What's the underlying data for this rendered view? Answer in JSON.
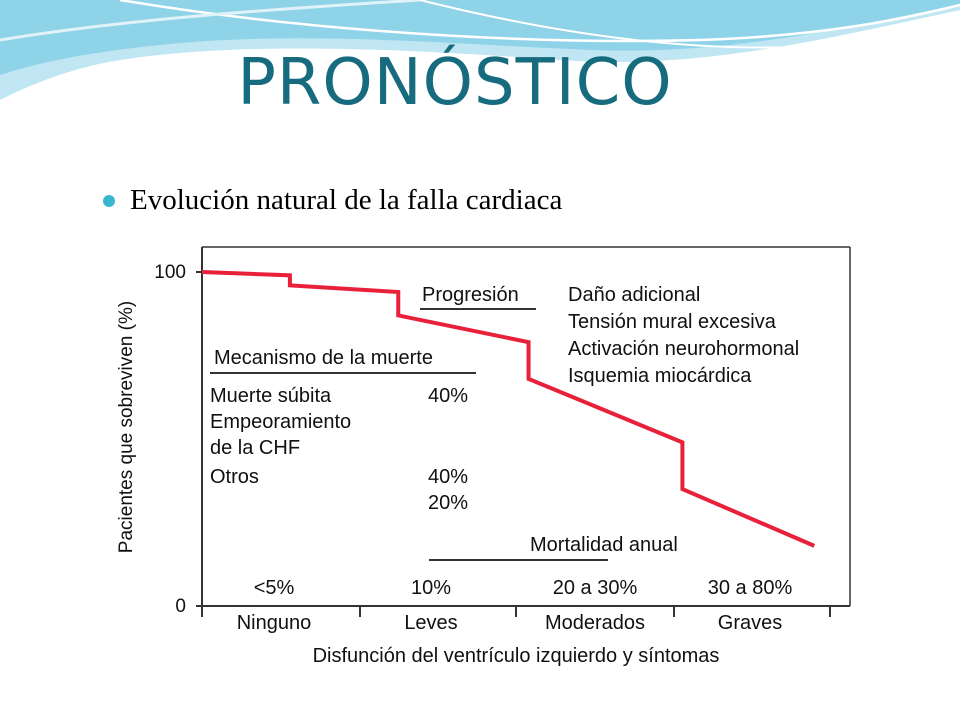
{
  "slide": {
    "title": "PRONÓSTICO",
    "bullet": "Evolución natural de la falla cardiaca"
  },
  "colors": {
    "title": "#176b7f",
    "bullet_dot": "#3ab7cf",
    "curve": "#e8203a",
    "wave_light": "#bfe6f2",
    "wave_mid": "#7fcfe6"
  },
  "chart_data": {
    "type": "line",
    "ylabel": "Pacientes que sobreviven (%)",
    "xlabel": "Disfunción del ventrículo izquierdo y síntomas",
    "ylim": [
      0,
      100
    ],
    "yticks": [
      "100",
      "0"
    ],
    "categories": [
      "Ninguno",
      "Leves",
      "Moderados",
      "Graves"
    ],
    "annual_mortality": {
      "title": "Mortalidad anual",
      "values": [
        "<5%",
        "10%",
        "20 a 30%",
        "30 a 80%"
      ]
    },
    "series": [
      {
        "x": [
          0,
          0.56,
          0.56,
          1.25,
          1.25,
          2.08,
          2.08,
          3.06,
          3.06,
          3.9
        ],
        "y": [
          100,
          99,
          96,
          94,
          87,
          79,
          68,
          49,
          35,
          18
        ]
      }
    ],
    "progression": {
      "title": "Progresión",
      "items": [
        "Daño adicional",
        "Tensión mural excesiva",
        "Activación neurohormonal",
        "Isquemia miocárdica"
      ]
    },
    "death_mechanism": {
      "title": "Mecanismo de la muerte",
      "lines": [
        "Muerte súbita",
        "Empeoramiento",
        "de la CHF",
        "Otros"
      ],
      "percents": [
        "40%",
        "40%",
        "20%"
      ]
    }
  }
}
